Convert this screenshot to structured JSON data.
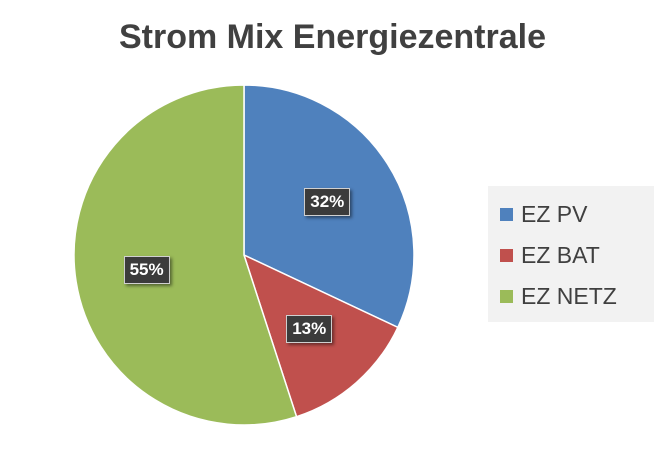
{
  "chart_data": {
    "type": "pie",
    "title": "Strom Mix Energiezentrale",
    "slices": [
      {
        "name": "EZ PV",
        "value": 32,
        "label": "32%",
        "color": "#4f81bd"
      },
      {
        "name": "EZ BAT",
        "value": 13,
        "label": "13%",
        "color": "#c0504d"
      },
      {
        "name": "EZ NETZ",
        "value": 55,
        "label": "55%",
        "color": "#9bbb59"
      }
    ],
    "start_angle": "12 o'clock",
    "direction": "clockwise",
    "legend_position": "right"
  }
}
